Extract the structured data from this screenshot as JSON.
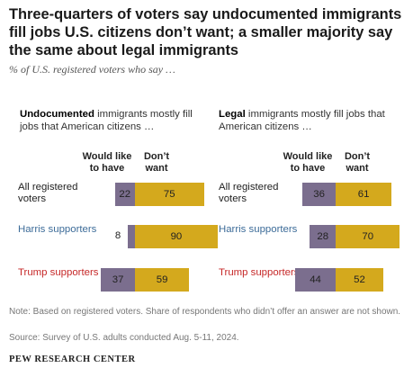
{
  "title": "Three-quarters of voters say undocumented immigrants fill jobs U.S. citizens don’t want; a smaller majority say the same about legal immigrants",
  "subtitle": "% of U.S. registered voters who say …",
  "note": "Note: Based on registered voters. Share of respondents who didn’t offer an answer are not shown.",
  "source": "Source: Survey of U.S. adults conducted Aug. 5-11, 2024.",
  "brand": "PEW RESEARCH CENTER",
  "colors": {
    "would_like": "#7b6e8e",
    "dont_want": "#d4a91d",
    "harris": "#3d6c99",
    "trump": "#c62828"
  },
  "panels": [
    {
      "head_bold": "Undocumented",
      "head_rest": " immigrants mostly fill jobs that American citizens …"
    },
    {
      "head_bold": "Legal",
      "head_rest": " immigrants mostly fill jobs that American citizens …"
    }
  ],
  "columns": {
    "would_like": "Would like to have",
    "dont_want": "Don’t want"
  },
  "rows": [
    {
      "label": "All registered voters",
      "color": "#222222"
    },
    {
      "label": "Harris supporters",
      "color": "#3d6c99"
    },
    {
      "label": "Trump supporters",
      "color": "#c62828"
    }
  ],
  "chart_data": [
    {
      "type": "bar",
      "title": "Undocumented immigrants mostly fill jobs that American citizens …",
      "categories": [
        "All registered voters",
        "Harris supporters",
        "Trump supporters"
      ],
      "series": [
        {
          "name": "Would like to have",
          "values": [
            22,
            8,
            37
          ]
        },
        {
          "name": "Don’t want",
          "values": [
            75,
            90,
            59
          ]
        }
      ]
    },
    {
      "type": "bar",
      "title": "Legal immigrants mostly fill jobs that American citizens …",
      "categories": [
        "All registered voters",
        "Harris supporters",
        "Trump supporters"
      ],
      "series": [
        {
          "name": "Would like to have",
          "values": [
            36,
            28,
            44
          ]
        },
        {
          "name": "Don’t want",
          "values": [
            61,
            70,
            52
          ]
        }
      ]
    }
  ]
}
